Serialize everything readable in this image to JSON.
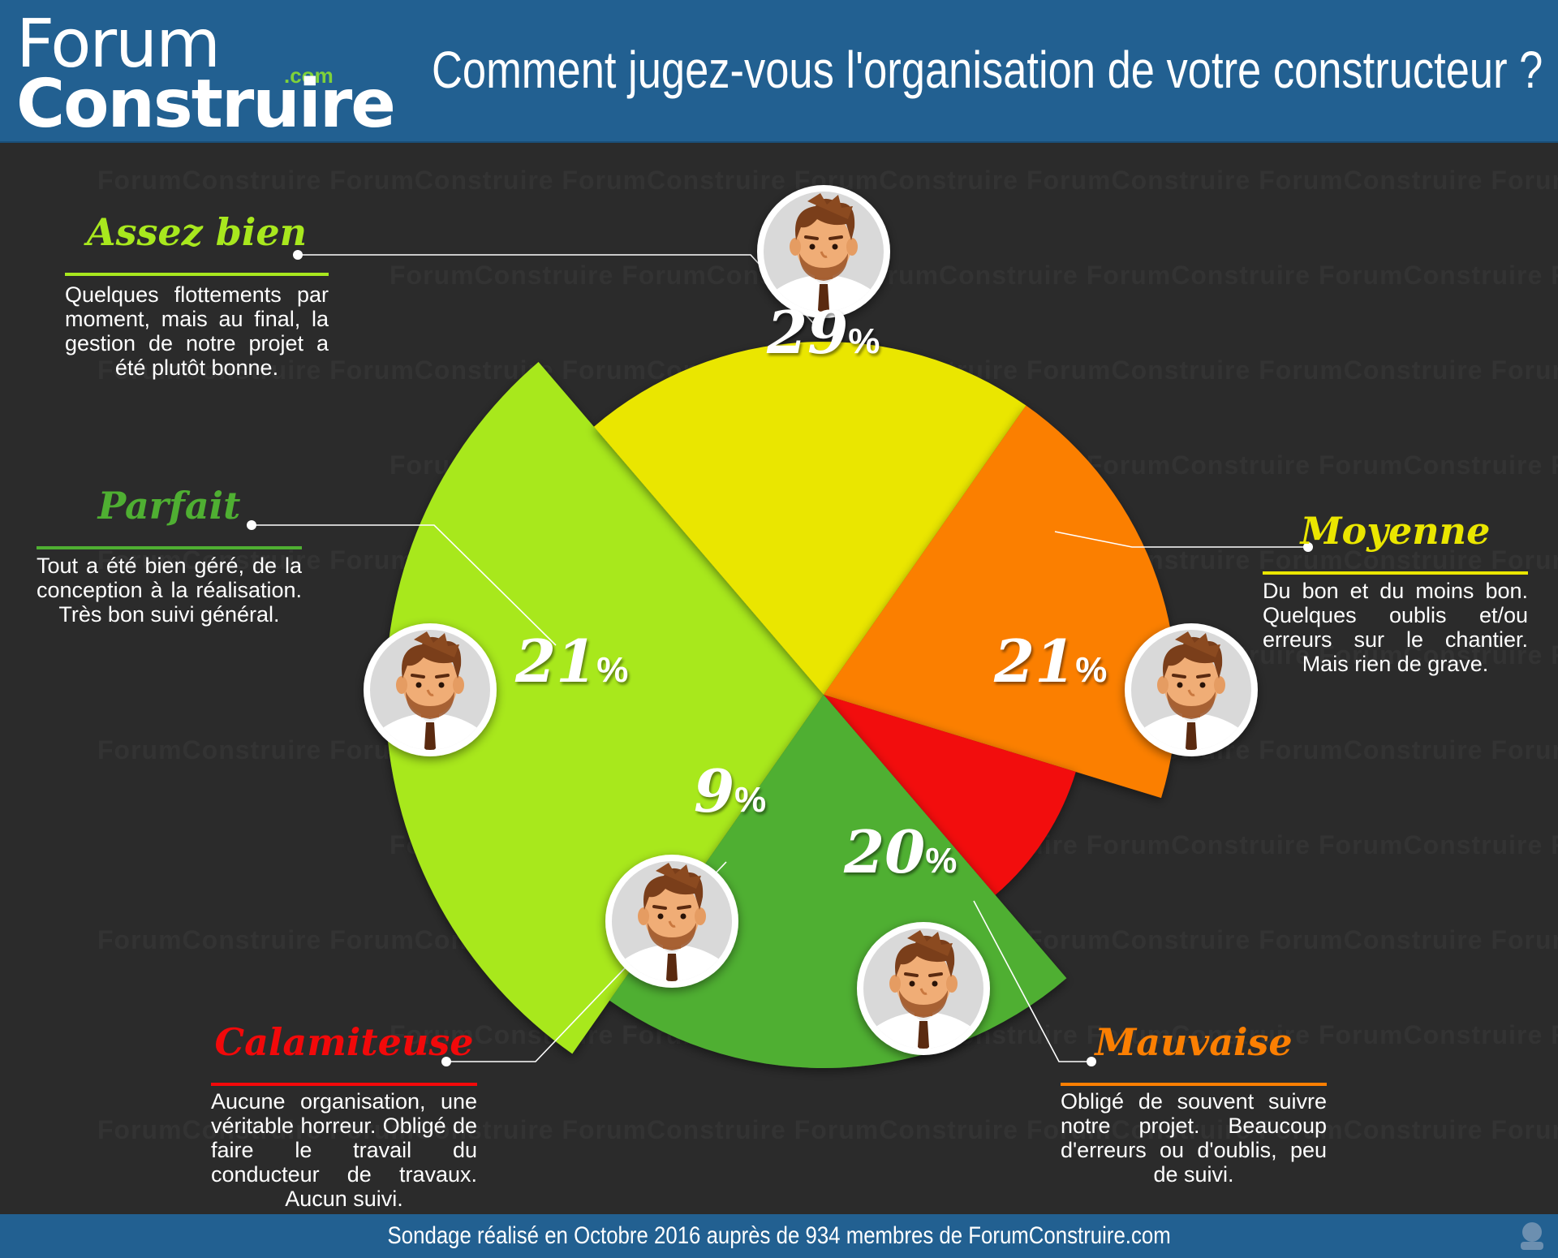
{
  "header": {
    "logo_forum": "Forum",
    "logo_com": ".com",
    "logo_construire": "Construire",
    "title": "Comment jugez-vous l'organisation de votre constructeur ?"
  },
  "watermark_text": "ForumConstruire",
  "chart_data": {
    "type": "pie",
    "title": "Comment jugez-vous l'organisation de votre constructeur ?",
    "unit": "%",
    "slices": [
      {
        "label": "Assez bien",
        "value": 29,
        "color": "#a8e81e",
        "description": "Quelques flottements par moment, mais au final, la gestion de notre projet a été plutôt bonne."
      },
      {
        "label": "Moyenne",
        "value": 21,
        "color": "#eae600",
        "description": "Du bon et du moins bon. Quelques oublis et/ou erreurs sur le chantier. Mais rien de grave."
      },
      {
        "label": "Mauvaise",
        "value": 20,
        "color": "#fb7f02",
        "description": "Obligé de souvent suivre notre projet. Beaucoup d'erreurs ou d'oublis, peu de suivi."
      },
      {
        "label": "Calamiteuse",
        "value": 9,
        "color": "#f2090a",
        "description": "Aucune organisation, une véritable horreur. Obligé de faire le travail du conducteur de travaux. Aucun suivi."
      },
      {
        "label": "Parfait",
        "value": 21,
        "color": "#4faf32",
        "description": "Tout a été bien géré, de la conception à la réalisation. Très bon suivi général."
      }
    ]
  },
  "footer": {
    "text": "Sondage réalisé en Octobre 2016 auprès de 934 membres de ForumConstruire.com"
  },
  "icons": [
    "avatar-happy",
    "avatar-very-happy",
    "avatar-neutral",
    "avatar-unhappy",
    "avatar-crying"
  ]
}
